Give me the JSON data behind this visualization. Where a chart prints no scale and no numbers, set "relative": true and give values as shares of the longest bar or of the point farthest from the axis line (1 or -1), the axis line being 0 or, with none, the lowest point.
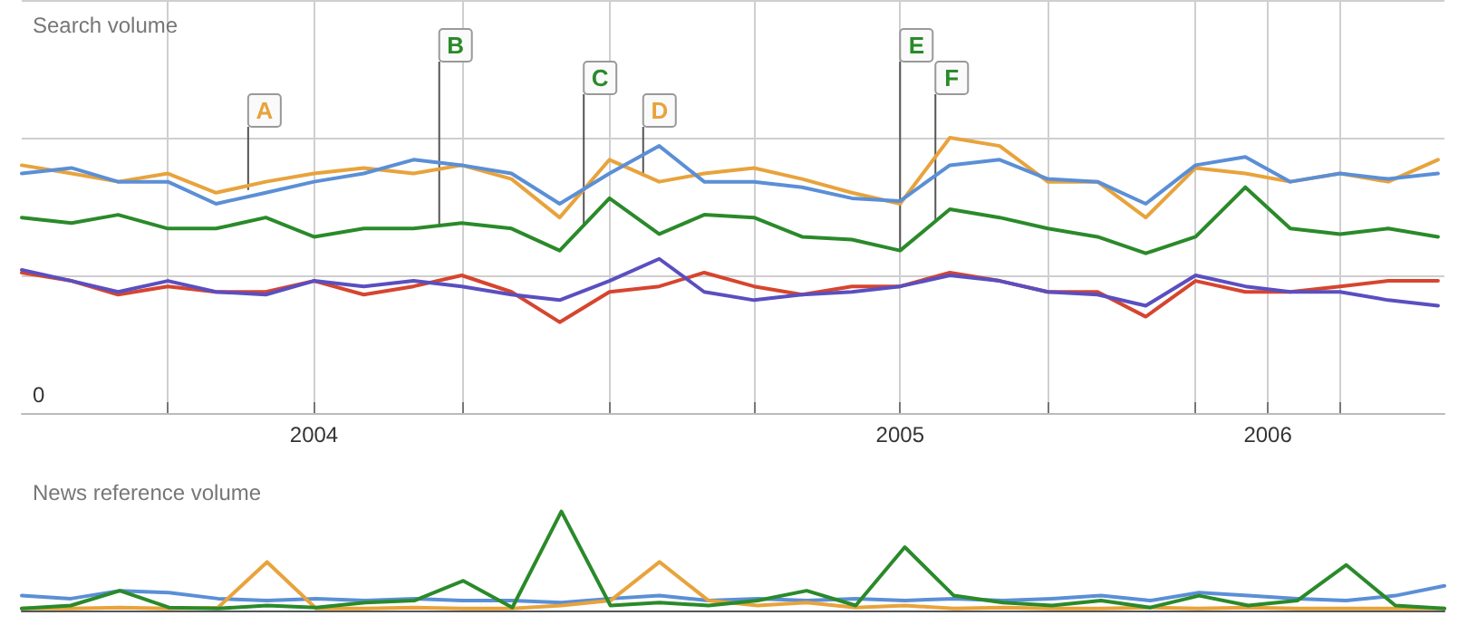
{
  "chart_data": [
    {
      "type": "line",
      "ylabel": "Search volume",
      "relative": true,
      "grid": true,
      "line_style": "solid",
      "marker": "none",
      "x": [
        "2004-01",
        "2004-02",
        "2004-03",
        "2004-04",
        "2004-05",
        "2004-06",
        "2004-07",
        "2004-08",
        "2004-09",
        "2004-10",
        "2004-11",
        "2004-12",
        "2005-01",
        "2005-02",
        "2005-03",
        "2005-04",
        "2005-05",
        "2005-06",
        "2005-07",
        "2005-08",
        "2005-09",
        "2005-10",
        "2005-11",
        "2005-12",
        "2006-01",
        "2006-02",
        "2006-03",
        "2006-04",
        "2006-05",
        "2006-06"
      ],
      "xlim": [
        "2004-01-01",
        "2006-06-05"
      ],
      "xticks": [
        {
          "value": "2004-04-01",
          "label": null
        },
        {
          "value": "2004-07-01",
          "label": "2004"
        },
        {
          "value": "2004-10-01",
          "label": null
        },
        {
          "value": "2005-01-01",
          "label": null
        },
        {
          "value": "2005-04-01",
          "label": null
        },
        {
          "value": "2005-07-01",
          "label": "2005"
        },
        {
          "value": "2005-10-01",
          "label": null
        },
        {
          "value": "2006-01-01",
          "label": null
        },
        {
          "value": "2006-02-15",
          "label": "2006"
        },
        {
          "value": "2006-04-01",
          "label": null
        }
      ],
      "series": [
        {
          "color": "#e8a33c",
          "values": [
            0.9,
            0.87,
            0.84,
            0.87,
            0.8,
            0.84,
            0.87,
            0.89,
            0.87,
            0.9,
            0.85,
            0.71,
            0.92,
            0.84,
            0.87,
            0.89,
            0.85,
            0.8,
            0.76,
            1,
            0.97,
            0.84,
            0.84,
            0.71,
            0.89,
            0.87,
            0.84,
            0.87,
            0.84,
            0.92
          ]
        },
        {
          "color": "#5b8fd6",
          "values": [
            0.87,
            0.89,
            0.84,
            0.84,
            0.76,
            0.8,
            0.84,
            0.87,
            0.92,
            0.9,
            0.87,
            0.76,
            0.87,
            0.97,
            0.84,
            0.84,
            0.82,
            0.78,
            0.77,
            0.9,
            0.92,
            0.85,
            0.84,
            0.76,
            0.9,
            0.93,
            0.84,
            0.87,
            0.85,
            0.87
          ]
        },
        {
          "color": "#2a8a2a",
          "values": [
            0.71,
            0.69,
            0.72,
            0.67,
            0.67,
            0.71,
            0.64,
            0.67,
            0.67,
            0.69,
            0.67,
            0.59,
            0.78,
            0.65,
            0.72,
            0.71,
            0.64,
            0.63,
            0.59,
            0.74,
            0.71,
            0.67,
            0.64,
            0.58,
            0.64,
            0.82,
            0.67,
            0.65,
            0.67,
            0.64
          ]
        },
        {
          "color": "#d6452f",
          "values": [
            0.51,
            0.48,
            0.43,
            0.46,
            0.44,
            0.44,
            0.48,
            0.43,
            0.46,
            0.5,
            0.44,
            0.33,
            0.44,
            0.46,
            0.51,
            0.46,
            0.43,
            0.46,
            0.46,
            0.51,
            0.48,
            0.44,
            0.44,
            0.35,
            0.48,
            0.44,
            0.44,
            0.46,
            0.48,
            0.48
          ]
        },
        {
          "color": "#5a4fc0",
          "values": [
            0.52,
            0.48,
            0.44,
            0.48,
            0.44,
            0.43,
            0.48,
            0.46,
            0.48,
            0.46,
            0.43,
            0.41,
            0.48,
            0.56,
            0.44,
            0.41,
            0.43,
            0.44,
            0.46,
            0.5,
            0.48,
            0.44,
            0.43,
            0.39,
            0.5,
            0.46,
            0.44,
            0.44,
            0.41,
            0.39
          ]
        }
      ],
      "annotations": [
        "0",
        {
          "text": "A",
          "x": "2004-05-21",
          "y": 0.81
        },
        {
          "text": "B",
          "x": "2004-09-17",
          "y": 0.68
        },
        {
          "text": "C",
          "x": "2004-12-16",
          "y": 0.68
        },
        {
          "text": "D",
          "x": "2005-01-22",
          "y": 0.86
        },
        {
          "text": "E",
          "x": "2005-07-01",
          "y": 0.59
        },
        {
          "text": "F",
          "x": "2005-07-23",
          "y": 0.7
        }
      ]
    },
    {
      "type": "line",
      "ylabel": "News reference volume",
      "relative": true,
      "line_style": "solid",
      "marker": "none",
      "categories": [
        null,
        null,
        null,
        null,
        null,
        null,
        null,
        null,
        null,
        null,
        null,
        null,
        null,
        null,
        null,
        null,
        null,
        null,
        null,
        null,
        null,
        null,
        null,
        null,
        null,
        null,
        null,
        null,
        null,
        null
      ],
      "series": [
        {
          "color": "#5b8fd6",
          "values": [
            0.15,
            0.12,
            0.2,
            0.18,
            0.12,
            0.1,
            0.12,
            0.1,
            0.12,
            0.1,
            0.1,
            0.08,
            0.12,
            0.15,
            0.1,
            0.12,
            0.1,
            0.12,
            0.1,
            0.12,
            0.1,
            0.12,
            0.15,
            0.1,
            0.18,
            0.15,
            0.12,
            0.1,
            0.15,
            0.25
          ]
        },
        {
          "color": "#e8a33c",
          "values": [
            0.02,
            0.02,
            0.03,
            0.02,
            0.03,
            0.49,
            0.02,
            0.02,
            0.03,
            0.02,
            0.02,
            0.05,
            0.1,
            0.49,
            0.1,
            0.05,
            0.08,
            0.03,
            0.05,
            0.02,
            0.03,
            0.02,
            0.02,
            0.03,
            0.02,
            0.03,
            0.02,
            0.02,
            0.02,
            0.02
          ]
        },
        {
          "color": "#2a8a2a",
          "values": [
            0.02,
            0.05,
            0.2,
            0.03,
            0.02,
            0.05,
            0.03,
            0.08,
            0.1,
            0.3,
            0.03,
            1,
            0.05,
            0.08,
            0.05,
            0.1,
            0.2,
            0.05,
            0.64,
            0.15,
            0.08,
            0.05,
            0.1,
            0.03,
            0.15,
            0.05,
            0.1,
            0.46,
            0.05,
            0.02
          ]
        }
      ]
    }
  ]
}
